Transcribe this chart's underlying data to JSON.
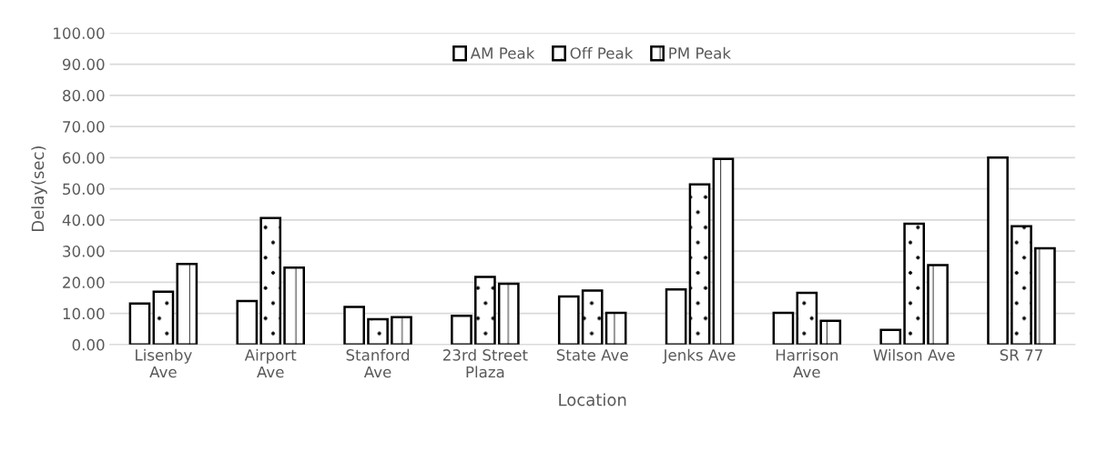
{
  "chart_data": {
    "type": "bar",
    "xlabel": "Location",
    "ylabel": "Delay(sec)",
    "categories": [
      "Lisenby Ave",
      "Airport Ave",
      "Stanford Ave",
      "23rd Street Plaza",
      "State Ave",
      "Jenks Ave",
      "Harrison Ave",
      "Wilson Ave",
      "SR 77"
    ],
    "series": [
      {
        "name": "AM Peak",
        "color": "#ffffff",
        "values": [
          13.2,
          14.0,
          12.1,
          9.2,
          15.4,
          17.7,
          10.2,
          4.7,
          60.0
        ]
      },
      {
        "name": "Off Peak",
        "color": "#000000",
        "values": [
          17.0,
          40.6,
          8.1,
          21.7,
          17.3,
          51.4,
          16.6,
          38.8,
          38.0
        ]
      },
      {
        "name": "PM Peak",
        "color": "#000000",
        "values": [
          25.9,
          24.7,
          8.8,
          19.5,
          10.2,
          59.6,
          7.6,
          25.5,
          30.9
        ]
      }
    ],
    "ylim": [
      0,
      100
    ],
    "yticks": [
      {
        "value": 0,
        "label": "0.00"
      },
      {
        "value": 10,
        "label": "10.00"
      },
      {
        "value": 20,
        "label": "20.00"
      },
      {
        "value": 30,
        "label": "30.00"
      },
      {
        "value": 40,
        "label": "40.00"
      },
      {
        "value": 50,
        "label": "50.00"
      },
      {
        "value": 60,
        "label": "60.00"
      },
      {
        "value": 70,
        "label": "70.00"
      },
      {
        "value": 80,
        "label": "80.00"
      },
      {
        "value": 90,
        "label": "90.00"
      },
      {
        "value": 100,
        "label": "100.00"
      }
    ],
    "grid": "y",
    "legend": "top"
  }
}
